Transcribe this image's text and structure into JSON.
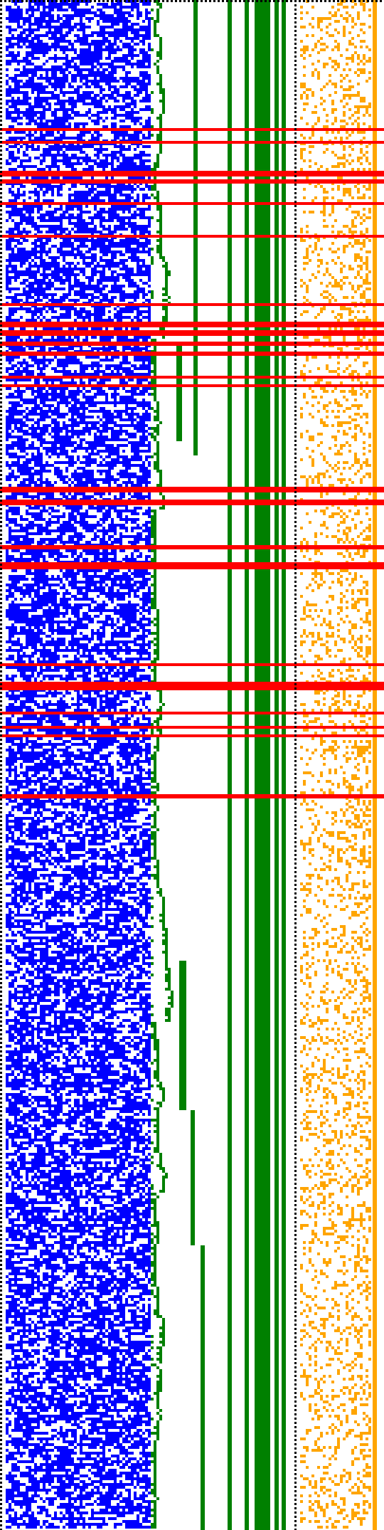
{
  "figure": {
    "kind": "cellular-automaton-style bitmap (no printed text)",
    "background_color": "#ffffff",
    "separator_color": "#000000",
    "panels": [
      {
        "name": "noise-panel",
        "color": "#0000ff",
        "density": 0.5
      },
      {
        "name": "staircase-panel",
        "color": "#008000"
      },
      {
        "name": "bars-panel",
        "color": "#008000"
      },
      {
        "name": "orange-panel",
        "color": "#ffa500",
        "density": 0.55
      }
    ],
    "highlight_color": "#ff0000"
  }
}
